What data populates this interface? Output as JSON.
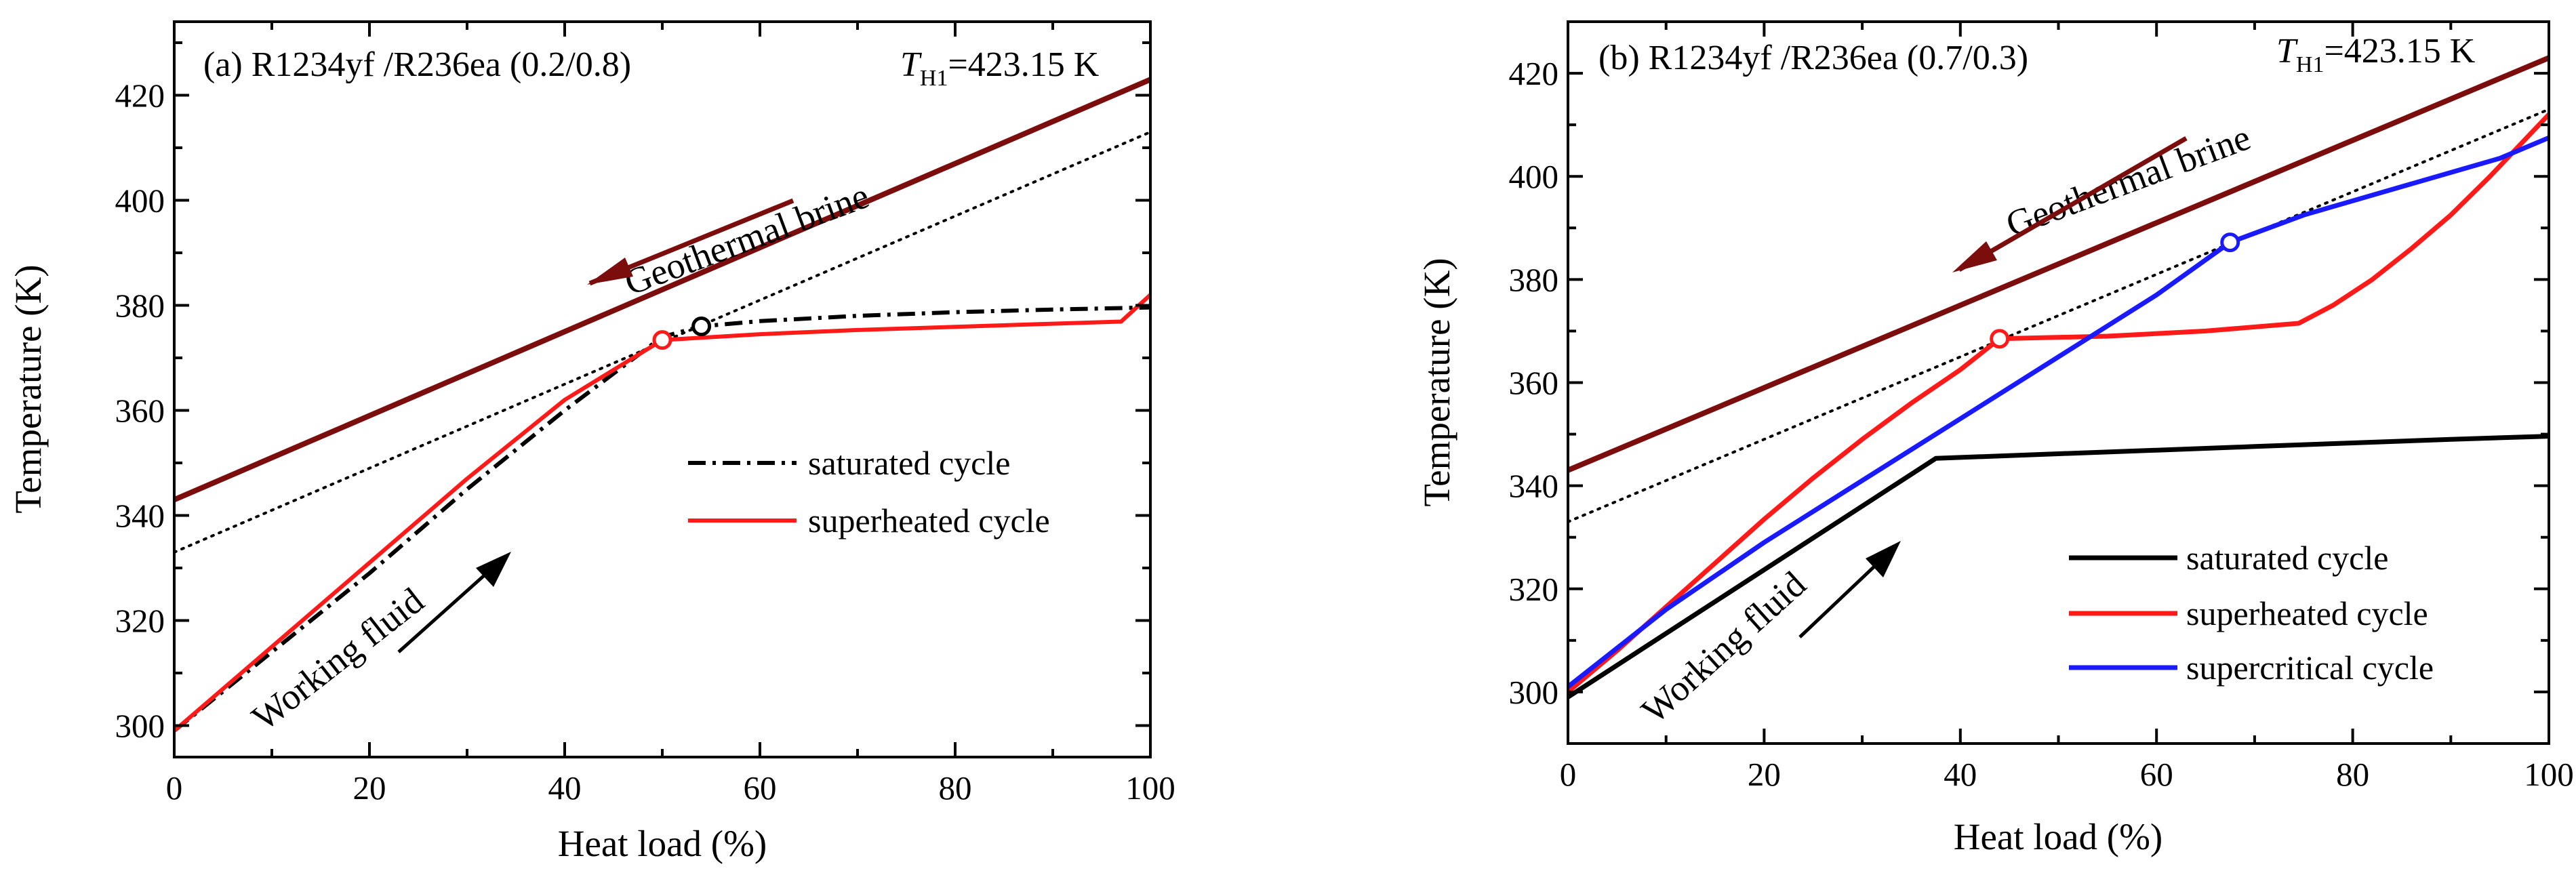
{
  "colors": {
    "brine": "#7b0d0d",
    "saturated_a": "#000000",
    "saturated_b": "#000000",
    "superheated": "#ff1a1a",
    "supercritical": "#1a1aff",
    "pinch_ref": "#000000",
    "arrow_fluid": "#000000"
  },
  "chart_data": [
    {
      "type": "line",
      "panel": "a",
      "title": "(a) R1234yf /R236ea (0.2/0.8)",
      "temp_label": {
        "symbol": "T",
        "subscript": "H1",
        "value": "=423.15 K"
      },
      "xlabel": "Heat load (%)",
      "ylabel": "Temperature (K)",
      "xlim": [
        0,
        100
      ],
      "ylim": [
        294,
        434
      ],
      "x_ticks": [
        0,
        20,
        40,
        60,
        80,
        100
      ],
      "y_ticks": [
        300,
        320,
        340,
        360,
        380,
        400,
        420
      ],
      "legend_position": "right-middle",
      "series": [
        {
          "name": "Geothermal brine",
          "style": "solid",
          "color_key": "brine",
          "in_legend": false,
          "x": [
            0,
            100
          ],
          "y": [
            343,
            423
          ]
        },
        {
          "name": "pinch reference",
          "style": "dotted",
          "color_key": "pinch_ref",
          "in_legend": false,
          "x": [
            0,
            100
          ],
          "y": [
            333,
            413
          ]
        },
        {
          "name": "saturated cycle",
          "style": "dashdot",
          "color_key": "saturated_a",
          "in_legend": true,
          "x": [
            0,
            10,
            20,
            30,
            40,
            50,
            54,
            60,
            70,
            80,
            90,
            100
          ],
          "y": [
            299,
            314,
            329,
            345,
            360,
            374,
            376,
            377,
            378,
            378.7,
            379.2,
            379.6
          ]
        },
        {
          "name": "superheated cycle",
          "style": "solid",
          "color_key": "superheated",
          "in_legend": true,
          "x": [
            0,
            10,
            20,
            30,
            40,
            50,
            60,
            70,
            80,
            90,
            97,
            100
          ],
          "y": [
            299,
            315,
            331,
            347,
            362,
            373.4,
            374.5,
            375.3,
            375.9,
            376.5,
            376.9,
            382
          ]
        }
      ],
      "markers": [
        {
          "x": 50,
          "y": 373.4,
          "color_key": "superheated"
        },
        {
          "x": 54,
          "y": 376,
          "color_key": "saturated_a"
        }
      ],
      "annotations": {
        "brine": "Geothermal brine",
        "fluid": "Working fluid"
      }
    },
    {
      "type": "line",
      "panel": "b",
      "title": "(b) R1234yf /R236ea (0.7/0.3)",
      "temp_label": {
        "symbol": "T",
        "subscript": "H1",
        "value": "=423.15 K"
      },
      "xlabel": "Heat load (%)",
      "ylabel": "Temperature (K)",
      "xlim": [
        0,
        100
      ],
      "ylim": [
        290,
        430
      ],
      "x_ticks": [
        0,
        20,
        40,
        60,
        80,
        100
      ],
      "y_ticks": [
        300,
        320,
        340,
        360,
        380,
        400,
        420
      ],
      "legend_position": "bottom-right",
      "series": [
        {
          "name": "Geothermal brine",
          "style": "solid",
          "color_key": "brine",
          "in_legend": false,
          "x": [
            0,
            100
          ],
          "y": [
            343,
            423
          ]
        },
        {
          "name": "pinch reference",
          "style": "dotted",
          "color_key": "pinch_ref",
          "in_legend": false,
          "x": [
            0,
            100
          ],
          "y": [
            333,
            413
          ]
        },
        {
          "name": "saturated cycle",
          "style": "solid",
          "color_key": "saturated_b",
          "in_legend": true,
          "x": [
            0,
            37.5,
            50,
            60,
            70,
            80,
            90,
            100
          ],
          "y": [
            299,
            345.3,
            346.2,
            346.9,
            347.6,
            348.3,
            349,
            349.6
          ]
        },
        {
          "name": "superheated cycle",
          "style": "solid",
          "color_key": "superheated",
          "in_legend": true,
          "x": [
            0,
            5,
            10,
            15,
            20,
            25,
            30,
            35,
            40,
            44,
            55,
            65,
            74.5,
            78,
            82,
            86,
            90,
            94,
            97,
            100
          ],
          "y": [
            300,
            308,
            316.5,
            325,
            333.5,
            341.5,
            349,
            356,
            362.5,
            368.5,
            369,
            370,
            371.5,
            375,
            380,
            386,
            392.5,
            400,
            406,
            412
          ]
        },
        {
          "name": "supercritical cycle",
          "style": "solid",
          "color_key": "supercritical",
          "in_legend": true,
          "x": [
            0,
            10,
            20,
            30,
            40,
            50,
            60,
            67.5,
            75,
            85,
            95,
            100
          ],
          "y": [
            301,
            316,
            329,
            341,
            353,
            365,
            377,
            387.2,
            392.5,
            398,
            403.5,
            407.5
          ]
        }
      ],
      "markers": [
        {
          "x": 44,
          "y": 368.5,
          "color_key": "superheated"
        },
        {
          "x": 67.5,
          "y": 387.2,
          "color_key": "supercritical"
        }
      ],
      "annotations": {
        "brine": "Geothermal brine",
        "fluid": "Working fluid"
      }
    }
  ]
}
